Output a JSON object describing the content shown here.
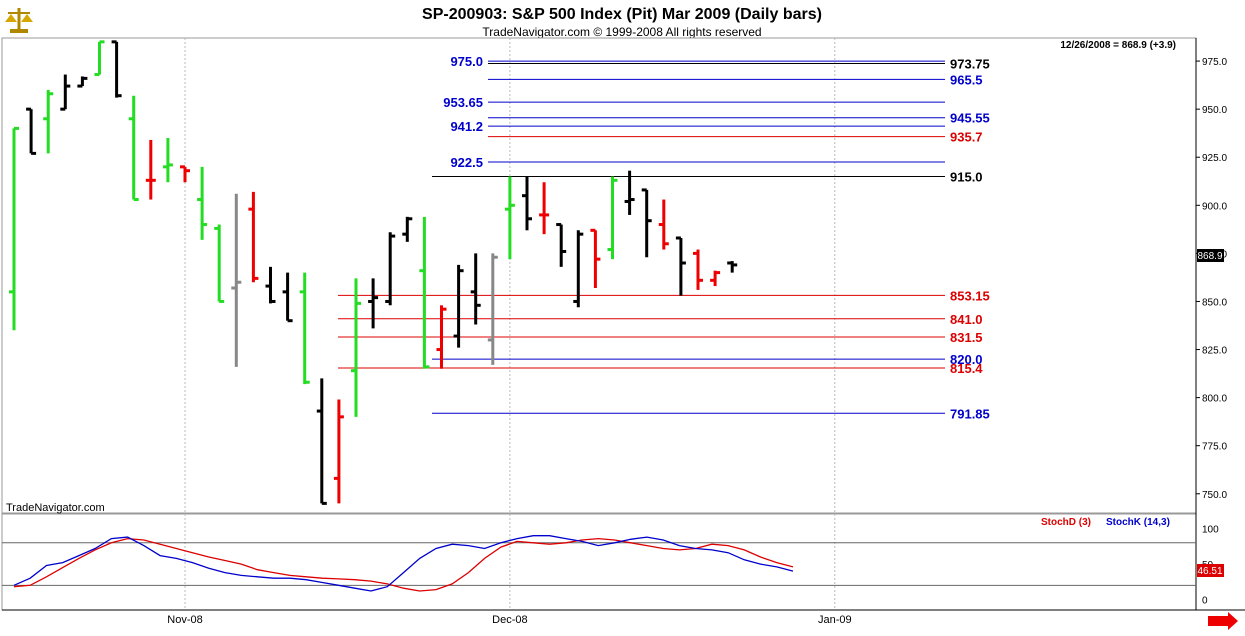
{
  "header": {
    "title": "SP-200903:  S&P 500 Index (Pit) Mar 2009  (Daily bars)",
    "subtitle": "TradeNavigator.com © 1999-2008 All rights reserved",
    "last_price_info": "12/26/2008 = 868.9 (+3.9)",
    "watermark": "TradeNavigator.com",
    "logo_icon": "scales-logo-icon"
  },
  "colors": {
    "up_bar": "#22dd22",
    "down_bar": "#ee0000",
    "neutral_bar": "#000000",
    "inside_bar": "#888888",
    "blue_level": "#0000cc",
    "red_level": "#dd0000",
    "black_level": "#000000",
    "stoch_d": "#dd0000",
    "stoch_k": "#0000cc"
  },
  "chart_data": [
    {
      "type": "ohlc",
      "title": "SP-200903:  S&P 500 Index (Pit) Mar 2009  (Daily bars)",
      "y_ticks": [
        "975.0",
        "950.0",
        "925.0",
        "900.0",
        "875.0",
        "850.0",
        "825.0",
        "800.0",
        "775.0",
        "750.0"
      ],
      "ylim": [
        740,
        987
      ],
      "x_tick_labels": [
        "Nov-08",
        "Dec-08",
        "Jan-09"
      ],
      "x_tick_dates": [
        "2008-11-03",
        "2008-12-01",
        "2009-01-02"
      ],
      "current_price_label": "868.9",
      "bars": [
        {
          "date": "2008-10-20",
          "open": 855,
          "high": 940,
          "low": 835,
          "close": 940,
          "color": "up"
        },
        {
          "date": "2008-10-21",
          "open": 950,
          "high": 950,
          "low": 927,
          "close": 927,
          "color": "neutral"
        },
        {
          "date": "2008-10-22",
          "open": 945,
          "high": 960,
          "low": 927,
          "close": 958,
          "color": "up"
        },
        {
          "date": "2008-10-23",
          "open": 950,
          "high": 968,
          "low": 950,
          "close": 962,
          "color": "neutral"
        },
        {
          "date": "2008-10-24",
          "open": 962,
          "high": 967,
          "low": 962,
          "close": 966,
          "color": "neutral"
        },
        {
          "date": "2008-10-27",
          "open": 968,
          "high": 985,
          "low": 968,
          "close": 985,
          "color": "up"
        },
        {
          "date": "2008-10-28",
          "open": 985,
          "high": 985,
          "low": 956,
          "close": 957,
          "color": "neutral"
        },
        {
          "date": "2008-10-29",
          "open": 945,
          "high": 957,
          "low": 903,
          "close": 903,
          "color": "up"
        },
        {
          "date": "2008-10-30",
          "open": 913,
          "high": 934,
          "low": 903,
          "close": 913,
          "color": "down"
        },
        {
          "date": "2008-10-31",
          "open": 920,
          "high": 935,
          "low": 912,
          "close": 921,
          "color": "up"
        },
        {
          "date": "2008-11-03",
          "open": 920,
          "high": 920,
          "low": 912,
          "close": 918,
          "color": "down"
        },
        {
          "date": "2008-11-04",
          "open": 903,
          "high": 920,
          "low": 882,
          "close": 890,
          "color": "up"
        },
        {
          "date": "2008-11-05",
          "open": 888,
          "high": 890,
          "low": 850,
          "close": 850,
          "color": "up"
        },
        {
          "date": "2008-11-06",
          "open": 857,
          "high": 906,
          "low": 816,
          "close": 860,
          "color": "inside"
        },
        {
          "date": "2008-11-07",
          "open": 898,
          "high": 907,
          "low": 860,
          "close": 862,
          "color": "down"
        },
        {
          "date": "2008-11-10",
          "open": 858,
          "high": 868,
          "low": 849,
          "close": 850,
          "color": "neutral"
        },
        {
          "date": "2008-11-11",
          "open": 855,
          "high": 865,
          "low": 840,
          "close": 840,
          "color": "neutral"
        },
        {
          "date": "2008-11-12",
          "open": 855,
          "high": 865,
          "low": 807,
          "close": 808,
          "color": "up"
        },
        {
          "date": "2008-11-13",
          "open": 793,
          "high": 810,
          "low": 745,
          "close": 745,
          "color": "neutral"
        },
        {
          "date": "2008-11-14",
          "open": 758,
          "high": 799,
          "low": 745,
          "close": 790,
          "color": "down"
        },
        {
          "date": "2008-11-17",
          "open": 814,
          "high": 862,
          "low": 790,
          "close": 849,
          "color": "up"
        },
        {
          "date": "2008-11-18",
          "open": 850,
          "high": 862,
          "low": 836,
          "close": 852,
          "color": "neutral"
        },
        {
          "date": "2008-11-19",
          "open": 850,
          "high": 886,
          "low": 848,
          "close": 884,
          "color": "neutral"
        },
        {
          "date": "2008-11-20",
          "open": 885,
          "high": 894,
          "low": 881,
          "close": 893,
          "color": "neutral"
        },
        {
          "date": "2008-11-21",
          "open": 866,
          "high": 894,
          "low": 815,
          "close": 816,
          "color": "up"
        },
        {
          "date": "2008-11-24",
          "open": 825,
          "high": 848,
          "low": 815,
          "close": 846,
          "color": "down"
        },
        {
          "date": "2008-11-25",
          "open": 832,
          "high": 869,
          "low": 826,
          "close": 866,
          "color": "neutral"
        },
        {
          "date": "2008-11-26",
          "open": 855,
          "high": 875,
          "low": 838,
          "close": 848,
          "color": "neutral"
        },
        {
          "date": "2008-11-28",
          "open": 830,
          "high": 875,
          "low": 817,
          "close": 873,
          "color": "inside"
        },
        {
          "date": "2008-12-01",
          "open": 898,
          "high": 915,
          "low": 872,
          "close": 900,
          "color": "up"
        },
        {
          "date": "2008-12-02",
          "open": 905,
          "high": 915,
          "low": 887,
          "close": 893,
          "color": "neutral"
        },
        {
          "date": "2008-12-03",
          "open": 895,
          "high": 912,
          "low": 885,
          "close": 895,
          "color": "down"
        },
        {
          "date": "2008-12-04",
          "open": 890,
          "high": 890,
          "low": 868,
          "close": 876,
          "color": "neutral"
        },
        {
          "date": "2008-12-05",
          "open": 850,
          "high": 887,
          "low": 847,
          "close": 885,
          "color": "neutral"
        },
        {
          "date": "2008-12-08",
          "open": 887,
          "high": 887,
          "low": 857,
          "close": 872,
          "color": "down"
        },
        {
          "date": "2008-12-09",
          "open": 877,
          "high": 915,
          "low": 872,
          "close": 913,
          "color": "up"
        },
        {
          "date": "2008-12-10",
          "open": 902,
          "high": 918,
          "low": 895,
          "close": 903,
          "color": "neutral"
        },
        {
          "date": "2008-12-11",
          "open": 908,
          "high": 908,
          "low": 873,
          "close": 892,
          "color": "neutral"
        },
        {
          "date": "2008-12-12",
          "open": 890,
          "high": 903,
          "low": 877,
          "close": 880,
          "color": "down"
        },
        {
          "date": "2008-12-15",
          "open": 883,
          "high": 883,
          "low": 853,
          "close": 870,
          "color": "neutral"
        },
        {
          "date": "2008-12-16",
          "open": 875,
          "high": 877,
          "low": 856,
          "close": 861,
          "color": "down"
        },
        {
          "date": "2008-12-17",
          "open": 861,
          "high": 866,
          "low": 858,
          "close": 865,
          "color": "down"
        },
        {
          "date": "2008-12-18",
          "open": 870,
          "high": 871,
          "low": 865,
          "close": 869,
          "color": "neutral"
        }
      ],
      "levels": [
        {
          "value": 975.0,
          "label": "975.0",
          "color": "blue",
          "label_side": "left"
        },
        {
          "value": 973.75,
          "label": "973.75",
          "color": "black",
          "label_side": "right"
        },
        {
          "value": 965.5,
          "label": "965.5",
          "color": "blue",
          "label_side": "right"
        },
        {
          "value": 953.65,
          "label": "953.65",
          "color": "blue",
          "label_side": "left"
        },
        {
          "value": 945.55,
          "label": "945.55",
          "color": "blue",
          "label_side": "right"
        },
        {
          "value": 941.2,
          "label": "941.2",
          "color": "blue",
          "label_side": "left"
        },
        {
          "value": 935.7,
          "label": "935.7",
          "color": "red",
          "label_side": "right"
        },
        {
          "value": 922.5,
          "label": "922.5",
          "color": "blue",
          "label_side": "left"
        },
        {
          "value": 915.0,
          "label": "915.0",
          "color": "black",
          "label_side": "right"
        },
        {
          "value": 853.15,
          "label": "853.15",
          "color": "red",
          "label_side": "right"
        },
        {
          "value": 841.0,
          "label": "841.0",
          "color": "red",
          "label_side": "right"
        },
        {
          "value": 831.5,
          "label": "831.5",
          "color": "red",
          "label_side": "right"
        },
        {
          "value": 820.0,
          "label": "820.0",
          "color": "blue",
          "label_side": "right"
        },
        {
          "value": 815.4,
          "label": "815.4",
          "color": "red",
          "label_side": "right"
        },
        {
          "value": 791.85,
          "label": "791.85",
          "color": "blue",
          "label_side": "right"
        }
      ]
    },
    {
      "type": "line",
      "title": "",
      "legend": [
        "StochD (3)",
        "StochK (14,3)"
      ],
      "y_ticks": [
        "100",
        "50",
        "0"
      ],
      "ylim": [
        -12,
        115
      ],
      "current_value_label": "46.51",
      "reference_lines": [
        80,
        20
      ],
      "series": [
        {
          "name": "StochD (3)",
          "color": "stoch_d",
          "values": [
            18,
            20,
            32,
            45,
            58,
            70,
            80,
            86,
            84,
            78,
            72,
            66,
            60,
            55,
            50,
            42,
            38,
            34,
            32,
            30,
            29,
            28,
            26,
            22,
            16,
            12,
            14,
            22,
            38,
            58,
            74,
            82,
            80,
            78,
            80,
            84,
            86,
            84,
            80,
            76,
            72,
            70,
            72,
            78,
            76,
            70,
            60,
            52,
            46
          ]
        },
        {
          "name": "StochK (14,3)",
          "color": "stoch_k",
          "values": [
            20,
            30,
            48,
            52,
            62,
            72,
            86,
            88,
            76,
            62,
            58,
            52,
            44,
            38,
            34,
            32,
            30,
            30,
            28,
            24,
            20,
            16,
            12,
            18,
            38,
            58,
            72,
            78,
            76,
            72,
            80,
            86,
            90,
            90,
            86,
            82,
            76,
            80,
            85,
            88,
            84,
            76,
            72,
            70,
            66,
            56,
            50,
            46,
            40
          ]
        }
      ]
    }
  ],
  "footer": {
    "scroll_right_icon": "scroll-right-arrow-icon"
  }
}
